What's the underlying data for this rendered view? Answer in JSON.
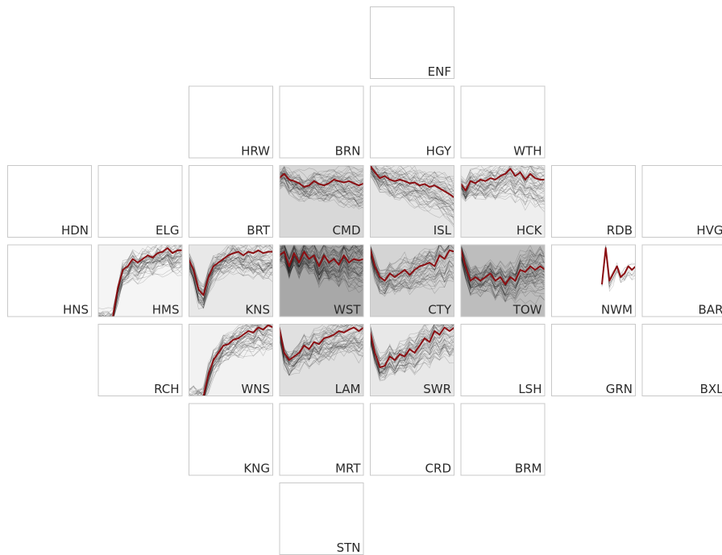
{
  "chart_data": {
    "type": "line",
    "layout": "tile-grid small multiples",
    "colors": {
      "highlight": "#8b0e12",
      "thin_lines": "#000000",
      "cell_border": "#c8c8c8"
    },
    "cells": [
      {
        "code": "ENF",
        "col": 4,
        "row": 0,
        "has_data": false
      },
      {
        "code": "HRW",
        "col": 2,
        "row": 1,
        "has_data": false
      },
      {
        "code": "BRN",
        "col": 3,
        "row": 1,
        "has_data": false
      },
      {
        "code": "HGY",
        "col": 4,
        "row": 1,
        "has_data": false
      },
      {
        "code": "WTH",
        "col": 5,
        "row": 1,
        "has_data": false
      },
      {
        "code": "HDN",
        "col": 0,
        "row": 2,
        "has_data": false
      },
      {
        "code": "ELG",
        "col": 1,
        "row": 2,
        "has_data": false
      },
      {
        "code": "BRT",
        "col": 2,
        "row": 2,
        "has_data": false
      },
      {
        "code": "CMD",
        "col": 3,
        "row": 2,
        "has_data": true,
        "shade": "#d8d8d8",
        "n_lines": 45,
        "spread": 0.5,
        "highlight": [
          0.18,
          0.12,
          0.2,
          0.22,
          0.25,
          0.3,
          0.28,
          0.22,
          0.26,
          0.28,
          0.25,
          0.2,
          0.22,
          0.24,
          0.22,
          0.25,
          0.28,
          0.25
        ]
      },
      {
        "code": "ISL",
        "col": 4,
        "row": 2,
        "has_data": true,
        "shade": "#e6e6e6",
        "n_lines": 45,
        "spread": 0.55,
        "highlight": [
          0.0,
          0.1,
          0.18,
          0.15,
          0.2,
          0.22,
          0.2,
          0.22,
          0.25,
          0.24,
          0.28,
          0.26,
          0.3,
          0.28,
          0.32,
          0.36,
          0.4,
          0.45
        ]
      },
      {
        "code": "HCK",
        "col": 5,
        "row": 2,
        "has_data": true,
        "shade": "#eeeeee",
        "n_lines": 45,
        "spread": 0.6,
        "highlight": [
          0.25,
          0.35,
          0.22,
          0.25,
          0.2,
          0.22,
          0.18,
          0.2,
          0.15,
          0.12,
          0.05,
          0.15,
          0.1,
          0.2,
          0.12,
          0.18,
          0.2,
          0.2
        ]
      },
      {
        "code": "RDB",
        "col": 6,
        "row": 2,
        "has_data": false
      },
      {
        "code": "HVG",
        "col": 7,
        "row": 2,
        "has_data": false
      },
      {
        "code": "HNS",
        "col": 0,
        "row": 3,
        "has_data": false
      },
      {
        "code": "HMS",
        "col": 1,
        "row": 3,
        "has_data": true,
        "shade": "#f5f5f5",
        "n_lines": 45,
        "spread": 0.45,
        "highlight": [
          1.0,
          1.0,
          1.0,
          1.0,
          0.6,
          0.35,
          0.3,
          0.2,
          0.25,
          0.2,
          0.15,
          0.18,
          0.12,
          0.1,
          0.05,
          0.12,
          0.08,
          0.08
        ]
      },
      {
        "code": "KNS",
        "col": 2,
        "row": 3,
        "has_data": true,
        "shade": "#e8e8e8",
        "n_lines": 45,
        "spread": 0.5,
        "highlight": [
          0.2,
          0.35,
          0.62,
          0.7,
          0.45,
          0.3,
          0.25,
          0.2,
          0.15,
          0.12,
          0.1,
          0.15,
          0.1,
          0.12,
          0.08,
          0.12,
          0.1,
          0.1
        ]
      },
      {
        "code": "WST",
        "col": 3,
        "row": 3,
        "has_data": true,
        "shade": "#a8a8a8",
        "n_lines": 60,
        "spread": 0.6,
        "highlight": [
          0.15,
          0.1,
          0.3,
          0.12,
          0.25,
          0.1,
          0.2,
          0.15,
          0.3,
          0.15,
          0.25,
          0.2,
          0.28,
          0.15,
          0.25,
          0.2,
          0.22,
          0.2
        ]
      },
      {
        "code": "CTY",
        "col": 4,
        "row": 3,
        "has_data": true,
        "shade": "#d4d4d4",
        "n_lines": 45,
        "spread": 0.55,
        "highlight": [
          0.05,
          0.3,
          0.45,
          0.5,
          0.4,
          0.45,
          0.4,
          0.35,
          0.42,
          0.35,
          0.3,
          0.28,
          0.25,
          0.3,
          0.15,
          0.2,
          0.08,
          0.1
        ]
      },
      {
        "code": "TOW",
        "col": 5,
        "row": 3,
        "has_data": true,
        "shade": "#bdbdbd",
        "n_lines": 55,
        "spread": 0.6,
        "highlight": [
          0.05,
          0.3,
          0.5,
          0.45,
          0.5,
          0.45,
          0.4,
          0.5,
          0.45,
          0.55,
          0.45,
          0.5,
          0.35,
          0.38,
          0.3,
          0.35,
          0.3,
          0.35
        ]
      },
      {
        "code": "NWM",
        "col": 6,
        "row": 3,
        "has_data": true,
        "shade": "#ffffff",
        "n_lines": 10,
        "spread": 0.2,
        "start": 0.6,
        "highlight": [
          0.55,
          0.05,
          0.5,
          0.4,
          0.3,
          0.45,
          0.4,
          0.3,
          0.35,
          0.3
        ]
      },
      {
        "code": "BAR",
        "col": 7,
        "row": 3,
        "has_data": false
      },
      {
        "code": "RCH",
        "col": 1,
        "row": 4,
        "has_data": false
      },
      {
        "code": "WNS",
        "col": 2,
        "row": 4,
        "has_data": true,
        "shade": "#f2f2f2",
        "n_lines": 45,
        "spread": 0.45,
        "highlight": [
          1.0,
          1.0,
          1.0,
          1.0,
          0.7,
          0.5,
          0.4,
          0.3,
          0.28,
          0.22,
          0.2,
          0.15,
          0.1,
          0.12,
          0.05,
          0.08,
          0.02,
          0.05
        ]
      },
      {
        "code": "LAM",
        "col": 3,
        "row": 4,
        "has_data": true,
        "shade": "#e0e0e0",
        "n_lines": 45,
        "spread": 0.55,
        "highlight": [
          0.05,
          0.4,
          0.5,
          0.45,
          0.4,
          0.3,
          0.35,
          0.25,
          0.28,
          0.2,
          0.18,
          0.15,
          0.1,
          0.12,
          0.08,
          0.05,
          0.1,
          0.05
        ]
      },
      {
        "code": "SWR",
        "col": 4,
        "row": 4,
        "has_data": true,
        "shade": "#e8e8e8",
        "n_lines": 45,
        "spread": 0.55,
        "highlight": [
          0.1,
          0.4,
          0.6,
          0.58,
          0.45,
          0.5,
          0.42,
          0.45,
          0.35,
          0.4,
          0.3,
          0.2,
          0.25,
          0.1,
          0.15,
          0.05,
          0.1,
          0.05
        ]
      },
      {
        "code": "LSH",
        "col": 5,
        "row": 4,
        "has_data": false
      },
      {
        "code": "GRN",
        "col": 6,
        "row": 4,
        "has_data": false
      },
      {
        "code": "BXL",
        "col": 7,
        "row": 4,
        "has_data": false
      },
      {
        "code": "KNG",
        "col": 2,
        "row": 5,
        "has_data": false
      },
      {
        "code": "MRT",
        "col": 3,
        "row": 5,
        "has_data": false
      },
      {
        "code": "CRD",
        "col": 4,
        "row": 5,
        "has_data": false
      },
      {
        "code": "BRM",
        "col": 5,
        "row": 5,
        "has_data": false
      },
      {
        "code": "STN",
        "col": 3,
        "row": 6,
        "has_data": false
      }
    ]
  }
}
